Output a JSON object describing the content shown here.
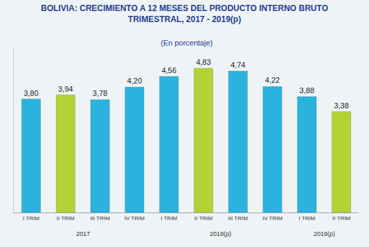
{
  "chart_data": {
    "type": "bar",
    "title": "BOLIVIA: CRECIMIENTO A 12 MESES DEL PRODUCTO INTERNO BRUTO\nTRIMESTRAL, 2017 - 2019(p)",
    "subtitle": "(En porcentaje)",
    "categories": [
      "I TRIM",
      "II TRIM",
      "III TRIM",
      "IV TRIM",
      "I TRIM",
      "II TRIM",
      "III TRIM",
      "IV TRIM",
      "I TRIM",
      "II TRIM"
    ],
    "values": [
      3.8,
      3.94,
      3.78,
      4.2,
      4.56,
      4.83,
      4.74,
      4.22,
      3.88,
      3.38
    ],
    "value_labels": [
      "3,80",
      "3,94",
      "3,78",
      "4,20",
      "4,56",
      "4,83",
      "4,74",
      "4,22",
      "3,88",
      "3,38"
    ],
    "colors": [
      "#2bb3e0",
      "#b3d334",
      "#2bb3e0",
      "#2bb3e0",
      "#2bb3e0",
      "#b3d334",
      "#2bb3e0",
      "#2bb3e0",
      "#2bb3e0",
      "#b3d334"
    ],
    "group_labels": [
      "2017",
      "2018(p)",
      "2019(p)"
    ],
    "group_sizes": [
      4,
      4,
      2
    ],
    "ylim": [
      0,
      5.5
    ],
    "data_labels": true,
    "tick_labels": "x",
    "grid": false
  }
}
